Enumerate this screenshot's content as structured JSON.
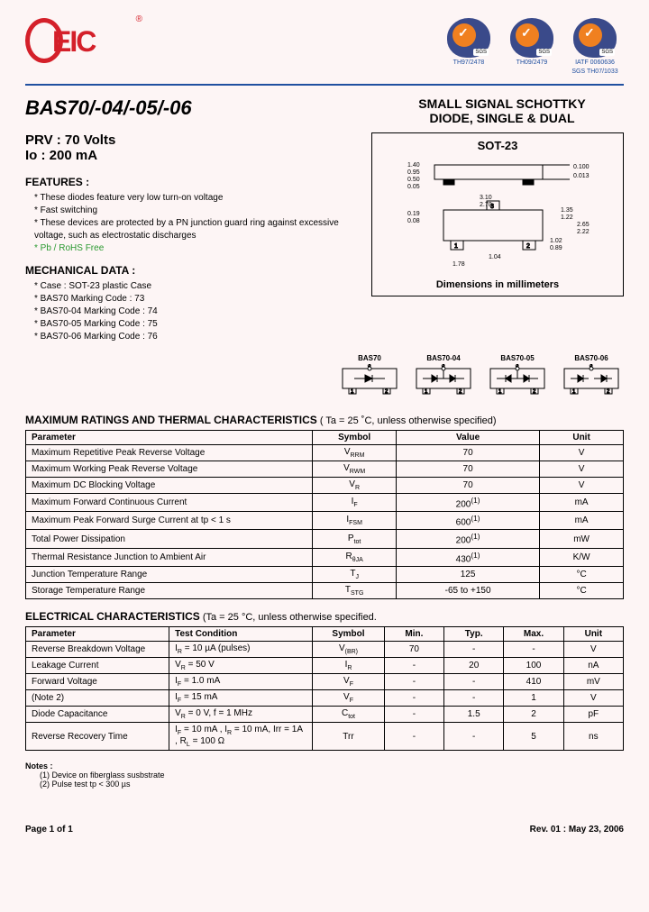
{
  "logo": {
    "text": "EIC",
    "reg": "®"
  },
  "certs": [
    {
      "sgs": "SGS",
      "label1": "TH97/2478",
      "label2": ""
    },
    {
      "sgs": "SGS",
      "label1": "TH09/2479",
      "label2": ""
    },
    {
      "sgs": "SGS",
      "label1": "IATF 0060636",
      "label2": "SGS TH07/1033"
    }
  ],
  "part_title": "BAS70/-04/-05/-06",
  "desc_title1": "SMALL SIGNAL SCHOTTKY",
  "desc_title2": "DIODE, SINGLE & DUAL",
  "specs": {
    "prv": "PRV : 70 Volts",
    "io": "Io : 200 mA"
  },
  "features_head": "FEATURES :",
  "features": [
    "These diodes feature very low turn-on voltage",
    "Fast switching",
    "These devices are protected by a PN junction guard ring against excessive voltage, such as electrostatic discharges",
    "Pb / RoHS Free"
  ],
  "mech_head": "MECHANICAL  DATA :",
  "mech": [
    "Case :  SOT-23 plastic Case",
    "BAS70      Marking Code : 73",
    "BAS70-04 Marking Code : 74",
    "BAS70-05 Marking Code : 75",
    "BAS70-06 Marking Code : 76"
  ],
  "pkg": {
    "title": "SOT-23",
    "foot": "Dimensions in millimeters",
    "dims": {
      "h1": "1.40",
      "h2": "0.95",
      "h3": "0.50",
      "h4": "0.05",
      "t1": "0.100",
      "t2": "0.013",
      "w1": "0.19",
      "w2": "0.08",
      "p1": "3.10",
      "p2": "2.70",
      "p3": "1.02",
      "p4": "0.89",
      "p5": "1.78",
      "p6": "1.04",
      "r1": "1.35",
      "r2": "1.22",
      "r3": "2.65",
      "r4": "2.22"
    }
  },
  "variants": [
    {
      "name": "BAS70"
    },
    {
      "name": "BAS70-04"
    },
    {
      "name": "BAS70-05"
    },
    {
      "name": "BAS70-06"
    }
  ],
  "ratings_head": "MAXIMUM RATINGS AND THERMAL CHARACTERISTICS",
  "ratings_cond": " ( Ta = 25 ˚C, unless otherwise specified)",
  "ratings_cols": [
    "Parameter",
    "Symbol",
    "Value",
    "Unit"
  ],
  "ratings": [
    [
      "Maximum Repetitive Peak Reverse Voltage",
      "V<sub>RRM</sub>",
      "70",
      "V"
    ],
    [
      "Maximum Working Peak Reverse Voltage",
      "V<sub>RWM</sub>",
      "70",
      "V"
    ],
    [
      "Maximum DC Blocking Voltage",
      "V<sub>R</sub>",
      "70",
      "V"
    ],
    [
      "Maximum Forward Continuous Current",
      "I<sub>F</sub>",
      "200<sup>(1)</sup>",
      "mA"
    ],
    [
      "Maximum Peak Forward Surge Current at  tp < 1 s",
      "I<sub>FSM</sub>",
      "600<sup>(1)</sup>",
      "mA"
    ],
    [
      "Total Power Dissipation",
      "P<sub>tot</sub>",
      "200<sup>(1)</sup>",
      "mW"
    ],
    [
      "Thermal Resistance Junction to Ambient Air",
      "R<sub>θJA</sub>",
      "430<sup>(1)</sup>",
      "K/W"
    ],
    [
      "Junction Temperature Range",
      "T<sub>J</sub>",
      "125",
      "°C"
    ],
    [
      "Storage Temperature Range",
      "T<sub>STG</sub>",
      "-65 to +150",
      "°C"
    ]
  ],
  "elec_head": "ELECTRICAL CHARACTERISTICS",
  "elec_cond": "  (Ta = 25 °C, unless otherwise specified.",
  "elec_cols": [
    "Parameter",
    "Test Condition",
    "Symbol",
    "Min.",
    "Typ.",
    "Max.",
    "Unit"
  ],
  "elec": [
    [
      "Reverse Breakdown Voltage",
      "I<sub>R</sub> = 10 µA (pulses)",
      "V<sub>(BR)</sub>",
      "70",
      "-",
      "-",
      "V"
    ],
    [
      "Leakage Current",
      "V<sub>R</sub> = 50 V",
      "I<sub>R</sub>",
      "-",
      "20",
      "100",
      "nA"
    ],
    [
      "Forward Voltage",
      "I<sub>F</sub> = 1.0 mA",
      "V<sub>F</sub>",
      "-",
      "-",
      "410",
      "mV"
    ],
    [
      "(Note 2)",
      "I<sub>F</sub> = 15 mA",
      "V<sub>F</sub>",
      "-",
      "-",
      "1",
      "V"
    ],
    [
      "Diode Capacitance",
      "V<sub>R</sub> = 0 V, f = 1 MHz",
      "C<sub>tot</sub>",
      "-",
      "1.5",
      "2",
      "pF"
    ],
    [
      "Reverse Recovery Time",
      "I<sub>F</sub> = 10 mA , I<sub>R</sub> = 10 mA, Irr = 1A , R<sub>L</sub> = 100 Ω",
      "Trr",
      "-",
      "-",
      "5",
      "ns"
    ]
  ],
  "notes_head": "Notes :",
  "notes": [
    "(1) Device on fiberglass susbstrate",
    "(2) Pulse test tp < 300 µs"
  ],
  "footer": {
    "left": "Page 1 of 1",
    "right": "Rev. 01 : May 23, 2006"
  }
}
